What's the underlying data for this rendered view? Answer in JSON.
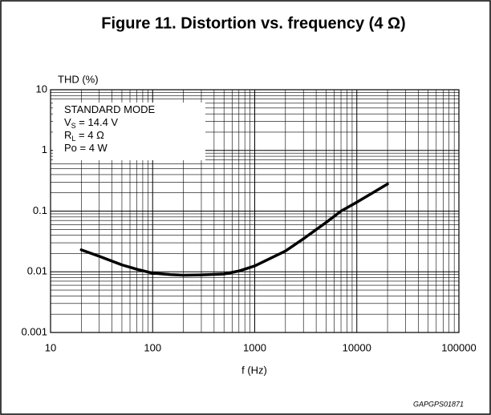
{
  "chart_data": {
    "type": "line",
    "title": "Figure 11. Distortion vs. frequency (4 Ω)",
    "y_label": "THD (%)",
    "x_label": "f (Hz)",
    "figure_code": "GAPGPS01871",
    "annotation": [
      {
        "text": "STANDARD MODE"
      },
      {
        "text": "V",
        "sub": "S",
        "after": " = 14.4 V"
      },
      {
        "text": "R",
        "sub": "L",
        "after": " = 4 Ω"
      },
      {
        "text": "Po = 4 W"
      }
    ],
    "log_x": true,
    "log_y": true,
    "grid": true,
    "xlim": [
      10,
      100000
    ],
    "ylim": [
      0.001,
      10
    ],
    "xticks": [
      10,
      100,
      1000,
      10000,
      100000
    ],
    "yticks": [
      0.001,
      0.01,
      0.1,
      1,
      10
    ],
    "x": [
      20,
      30,
      50,
      70,
      100,
      150,
      200,
      300,
      500,
      700,
      1000,
      2000,
      3000,
      5000,
      7000,
      10000,
      15000,
      20000
    ],
    "series": [
      {
        "color": "#000000",
        "values": [
          0.023,
          0.018,
          0.013,
          0.011,
          0.0095,
          0.009,
          0.0088,
          0.0089,
          0.0092,
          0.0103,
          0.0125,
          0.022,
          0.035,
          0.065,
          0.1,
          0.14,
          0.21,
          0.28
        ]
      }
    ]
  }
}
